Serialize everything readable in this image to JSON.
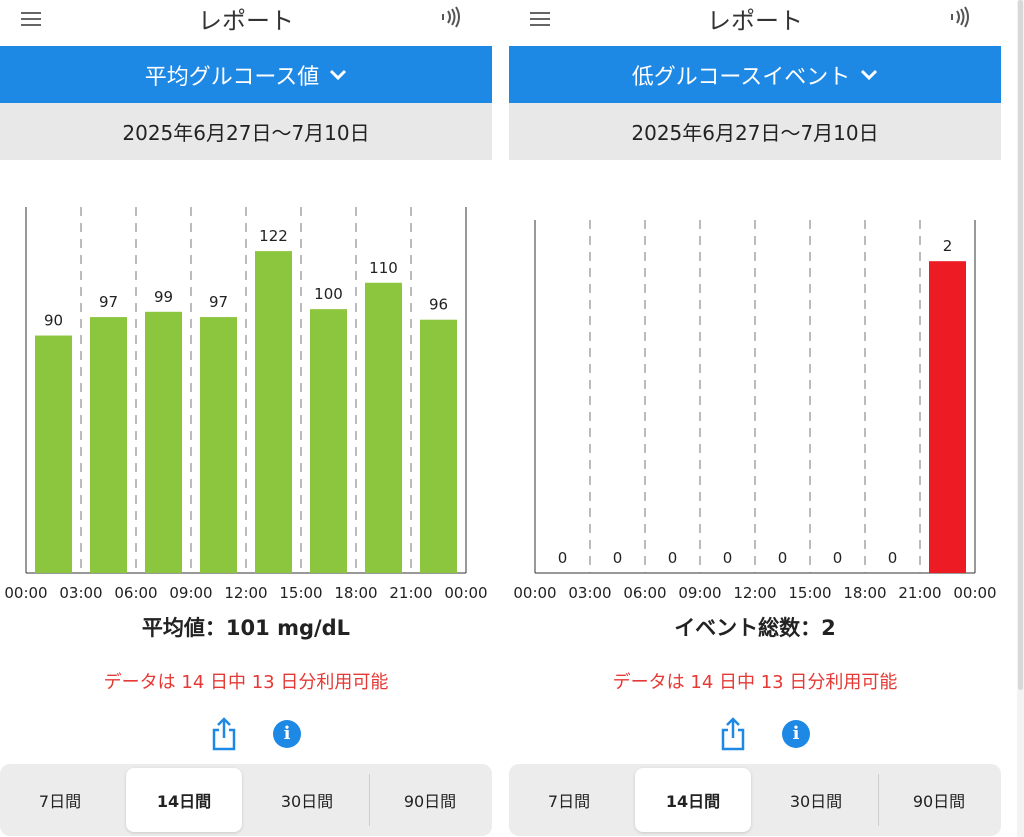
{
  "panels": [
    {
      "app_title": "レポート",
      "report_selector": "平均グルコース値",
      "date_range": "2025年6月27日〜7月10日",
      "summary": "平均値：101 mg/dL",
      "availability": "データは 14 日中 13 日分利用可能",
      "tabs": [
        "7日間",
        "14日間",
        "30日間",
        "90日間"
      ],
      "active_tab": "14日間",
      "chart_data": {
        "type": "bar",
        "categories": [
          "00:00",
          "03:00",
          "06:00",
          "09:00",
          "12:00",
          "15:00",
          "18:00",
          "21:00"
        ],
        "x_tick_labels": [
          "00:00",
          "03:00",
          "06:00",
          "09:00",
          "12:00",
          "15:00",
          "18:00",
          "21:00",
          "00:00"
        ],
        "values": [
          90,
          97,
          99,
          97,
          122,
          100,
          110,
          96
        ],
        "data_labels": [
          "90",
          "97",
          "99",
          "97",
          "122",
          "100",
          "110",
          "96"
        ],
        "bar_color": "#8cc63f",
        "ylim": [
          0,
          130
        ],
        "grid": "dashed-vertical",
        "title": "",
        "xlabel": "",
        "ylabel": ""
      }
    },
    {
      "app_title": "レポート",
      "report_selector": "低グルコースイベント",
      "date_range": "2025年6月27日〜7月10日",
      "summary": "イベント総数：2",
      "availability": "データは 14 日中 13 日分利用可能",
      "tabs": [
        "7日間",
        "14日間",
        "30日間",
        "90日間"
      ],
      "active_tab": "14日間",
      "chart_data": {
        "type": "bar",
        "categories": [
          "00:00",
          "03:00",
          "06:00",
          "09:00",
          "12:00",
          "15:00",
          "18:00",
          "21:00"
        ],
        "x_tick_labels": [
          "00:00",
          "03:00",
          "06:00",
          "09:00",
          "12:00",
          "15:00",
          "18:00",
          "21:00",
          "00:00"
        ],
        "values": [
          0,
          0,
          0,
          0,
          0,
          0,
          0,
          2
        ],
        "data_labels": [
          "0",
          "0",
          "0",
          "0",
          "0",
          "0",
          "0",
          "2"
        ],
        "bar_color": "#ed1c24",
        "ylim": [
          0,
          2.2
        ],
        "grid": "dashed-vertical",
        "title": "",
        "xlabel": "",
        "ylabel": ""
      }
    }
  ],
  "colors": {
    "accent": "#1e88e5",
    "date_bg": "#e8e8e8",
    "alert_text": "#e53935"
  },
  "icons": [
    "menu-icon",
    "nfc-scan-icon",
    "chevron-down-icon",
    "share-icon",
    "info-icon"
  ]
}
